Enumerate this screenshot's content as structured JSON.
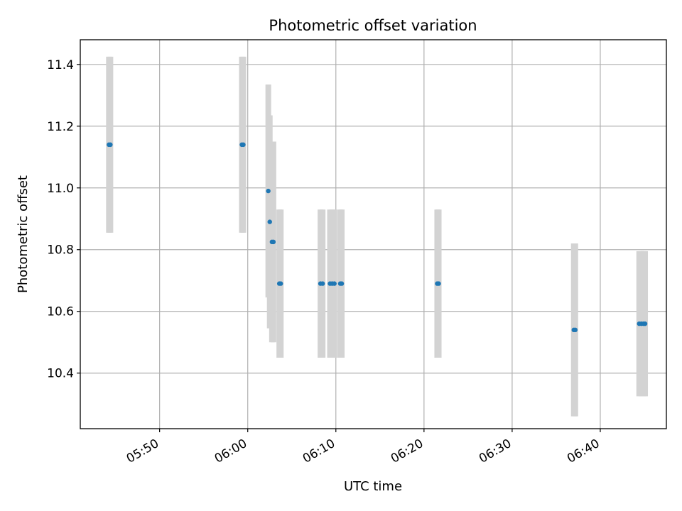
{
  "chart_data": {
    "type": "scatter",
    "title": "Photometric offset variation",
    "xlabel": "UTC time",
    "ylabel": "Photometric offset",
    "x_tick_labels": [
      "05:50",
      "06:00",
      "06:10",
      "06:20",
      "06:30",
      "06:40"
    ],
    "y_tick_labels": [
      "10.4",
      "10.6",
      "10.8",
      "11.0",
      "11.2",
      "11.4"
    ],
    "xlim": [
      "05:41:00",
      "06:47:30"
    ],
    "ylim": [
      10.22,
      11.48
    ],
    "grid": true,
    "colors": {
      "point": "#1f77b4",
      "error_bar": "#d3d3d3",
      "grid": "#b0b0b0"
    },
    "series": [
      {
        "points": [
          {
            "x": "05:44:15",
            "y": 11.14,
            "yerr": 0.285
          },
          {
            "x": "05:44:25",
            "y": 11.14,
            "yerr": 0.285
          },
          {
            "x": "05:59:20",
            "y": 11.14,
            "yerr": 0.285
          },
          {
            "x": "05:59:30",
            "y": 11.14,
            "yerr": 0.285
          },
          {
            "x": "06:02:20",
            "y": 10.99,
            "yerr": 0.345
          },
          {
            "x": "06:02:30",
            "y": 10.89,
            "yerr": 0.345
          },
          {
            "x": "06:02:45",
            "y": 10.825,
            "yerr": 0.325
          },
          {
            "x": "06:02:55",
            "y": 10.825,
            "yerr": 0.325
          },
          {
            "x": "06:03:35",
            "y": 10.69,
            "yerr": 0.24
          },
          {
            "x": "06:03:45",
            "y": 10.69,
            "yerr": 0.24
          },
          {
            "x": "06:08:15",
            "y": 10.69,
            "yerr": 0.24
          },
          {
            "x": "06:08:30",
            "y": 10.69,
            "yerr": 0.24
          },
          {
            "x": "06:09:20",
            "y": 10.69,
            "yerr": 0.24
          },
          {
            "x": "06:09:35",
            "y": 10.69,
            "yerr": 0.24
          },
          {
            "x": "06:09:50",
            "y": 10.69,
            "yerr": 0.24
          },
          {
            "x": "06:10:30",
            "y": 10.69,
            "yerr": 0.24
          },
          {
            "x": "06:10:40",
            "y": 10.69,
            "yerr": 0.24
          },
          {
            "x": "06:21:30",
            "y": 10.69,
            "yerr": 0.24
          },
          {
            "x": "06:21:40",
            "y": 10.69,
            "yerr": 0.24
          },
          {
            "x": "06:37:00",
            "y": 10.54,
            "yerr": 0.28
          },
          {
            "x": "06:37:10",
            "y": 10.54,
            "yerr": 0.28
          },
          {
            "x": "06:44:25",
            "y": 10.56,
            "yerr": 0.235
          },
          {
            "x": "06:44:40",
            "y": 10.56,
            "yerr": 0.235
          },
          {
            "x": "06:44:55",
            "y": 10.56,
            "yerr": 0.235
          },
          {
            "x": "06:45:05",
            "y": 10.56,
            "yerr": 0.235
          }
        ]
      }
    ]
  }
}
